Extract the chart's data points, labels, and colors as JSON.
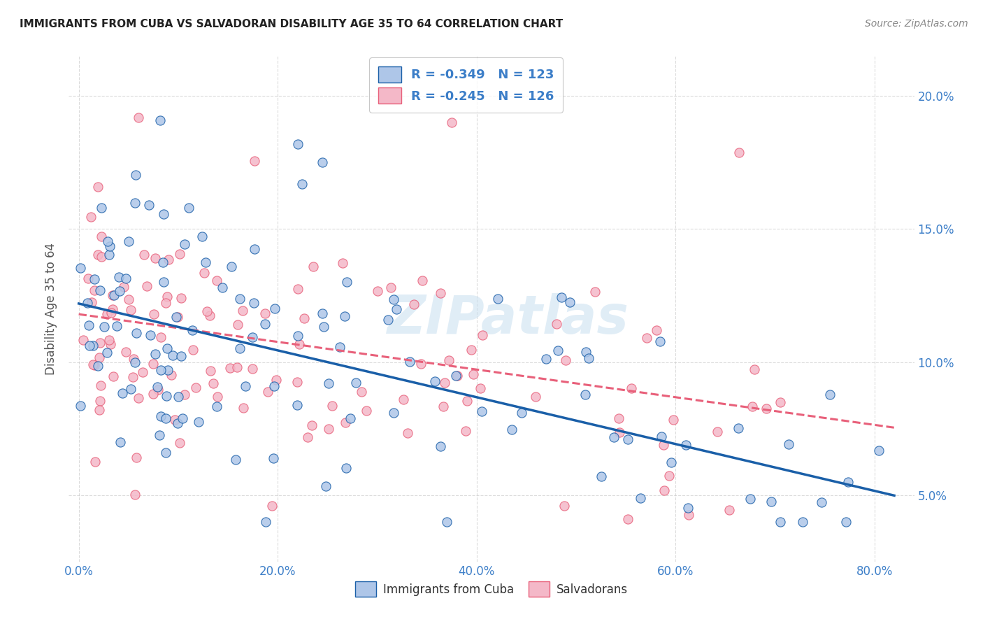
{
  "title": "IMMIGRANTS FROM CUBA VS SALVADORAN DISABILITY AGE 35 TO 64 CORRELATION CHART",
  "source": "Source: ZipAtlas.com",
  "xlabel_ticks": [
    "0.0%",
    "20.0%",
    "40.0%",
    "60.0%",
    "80.0%"
  ],
  "xlabel_vals": [
    0.0,
    0.2,
    0.4,
    0.6,
    0.8
  ],
  "ylabel_ticks": [
    "5.0%",
    "10.0%",
    "15.0%",
    "20.0%"
  ],
  "ylabel_vals": [
    0.05,
    0.1,
    0.15,
    0.2
  ],
  "xlim": [
    -0.01,
    0.84
  ],
  "ylim": [
    0.025,
    0.215
  ],
  "ylabel": "Disability Age 35 to 64",
  "watermark": "ZIPatlas",
  "legend_r_cuba": "R = -0.349",
  "legend_n_cuba": "N = 123",
  "legend_r_salv": "R = -0.245",
  "legend_n_salv": "N = 126",
  "color_cuba": "#aec6e8",
  "color_salv": "#f4b8c8",
  "color_line_cuba": "#1a5fa8",
  "color_line_salv": "#e8607a",
  "color_text_blue": "#3c7ec8",
  "color_axis": "#3c7ec8",
  "grid_color": "#cccccc",
  "background_color": "#ffffff",
  "cuba_intercept": 0.122,
  "cuba_slope": -0.088,
  "salv_intercept": 0.118,
  "salv_slope": -0.052
}
